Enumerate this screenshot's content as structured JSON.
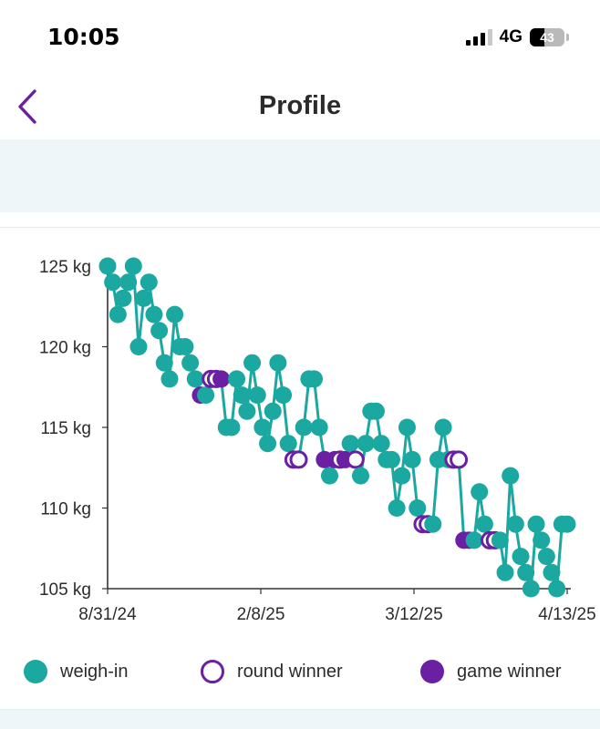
{
  "status_bar": {
    "time": "10:05",
    "network": "4G",
    "battery": "43",
    "battery_level": 0.43,
    "icons": [
      "signal-icon",
      "battery-icon"
    ]
  },
  "nav": {
    "back_icon": "chevron-left-icon",
    "title": "Profile"
  },
  "colors": {
    "accent": "#6b1fa3",
    "weigh_in": "#1aa8a0",
    "banner": "#eef6fa",
    "axis": "#333333"
  },
  "chart_data": {
    "type": "line",
    "title": "",
    "xlabel": "",
    "ylabel": "",
    "x_ticks": [
      "8/31/24",
      "2/8/25",
      "3/12/25",
      "4/13/25"
    ],
    "y_ticks": [
      "105 kg",
      "110 kg",
      "115 kg",
      "120 kg",
      "125 kg"
    ],
    "ylim": [
      105,
      125
    ],
    "grid": false,
    "legend_position": "bottom",
    "legend": [
      {
        "label": "weigh-in",
        "style": "filled",
        "color": "#1aa8a0"
      },
      {
        "label": "round winner",
        "style": "hollow",
        "color": "#6b1fa3"
      },
      {
        "label": "game winner",
        "style": "filled",
        "color": "#6b1fa3"
      }
    ],
    "series": [
      {
        "index": [
          0,
          1,
          2,
          3,
          4,
          5,
          6,
          7,
          8,
          9,
          10,
          11,
          12,
          13,
          14,
          15,
          16,
          17,
          18,
          19,
          20,
          21,
          22,
          23,
          24,
          25,
          26,
          27,
          28,
          29,
          30,
          31,
          32,
          33,
          34,
          35,
          36,
          37,
          38,
          39,
          40,
          41,
          42,
          43,
          44,
          45,
          46,
          47,
          48,
          49,
          50,
          51,
          52,
          53,
          54,
          55,
          56,
          57,
          58,
          59,
          60,
          61,
          62,
          63,
          64,
          65,
          66,
          67,
          68,
          69,
          70,
          71,
          72,
          73,
          74,
          75,
          76,
          77,
          78,
          79,
          80,
          81,
          82,
          83,
          84,
          85,
          86,
          87,
          88,
          89
        ],
        "values": [
          125,
          124,
          122,
          123,
          124,
          125,
          120,
          123,
          124,
          122,
          121,
          119,
          118,
          122,
          120,
          120,
          119,
          118,
          117,
          117,
          118,
          118,
          118,
          115,
          115,
          118,
          117,
          116,
          119,
          117,
          115,
          114,
          116,
          119,
          117,
          114,
          113,
          113,
          115,
          118,
          118,
          115,
          113,
          112,
          113,
          113,
          113,
          114,
          113,
          112,
          114,
          116,
          116,
          114,
          113,
          113,
          110,
          112,
          115,
          113,
          110,
          109,
          109,
          109,
          113,
          115,
          113,
          113,
          113,
          108,
          108,
          108,
          111,
          109,
          108,
          108,
          108,
          106,
          112,
          109,
          107,
          106,
          105,
          109,
          108,
          107,
          106,
          105,
          109,
          109
        ],
        "markers": [
          "w",
          "w",
          "w",
          "w",
          "w",
          "w",
          "w",
          "w",
          "w",
          "w",
          "w",
          "w",
          "w",
          "w",
          "w",
          "w",
          "w",
          "w",
          "g",
          "w",
          "r",
          "r",
          "g",
          "w",
          "w",
          "w",
          "w",
          "w",
          "w",
          "w",
          "w",
          "w",
          "w",
          "w",
          "w",
          "w",
          "r",
          "r",
          "w",
          "w",
          "w",
          "w",
          "g",
          "w",
          "g",
          "r",
          "g",
          "w",
          "r",
          "w",
          "w",
          "w",
          "w",
          "w",
          "w",
          "w",
          "w",
          "w",
          "w",
          "w",
          "w",
          "r",
          "r",
          "w",
          "w",
          "w",
          "w",
          "r",
          "r",
          "g",
          "g",
          "w",
          "w",
          "w",
          "r",
          "r",
          "w",
          "w",
          "w",
          "w",
          "w",
          "w",
          "w",
          "w",
          "w",
          "w",
          "w",
          "w",
          "w",
          "w"
        ]
      }
    ]
  }
}
